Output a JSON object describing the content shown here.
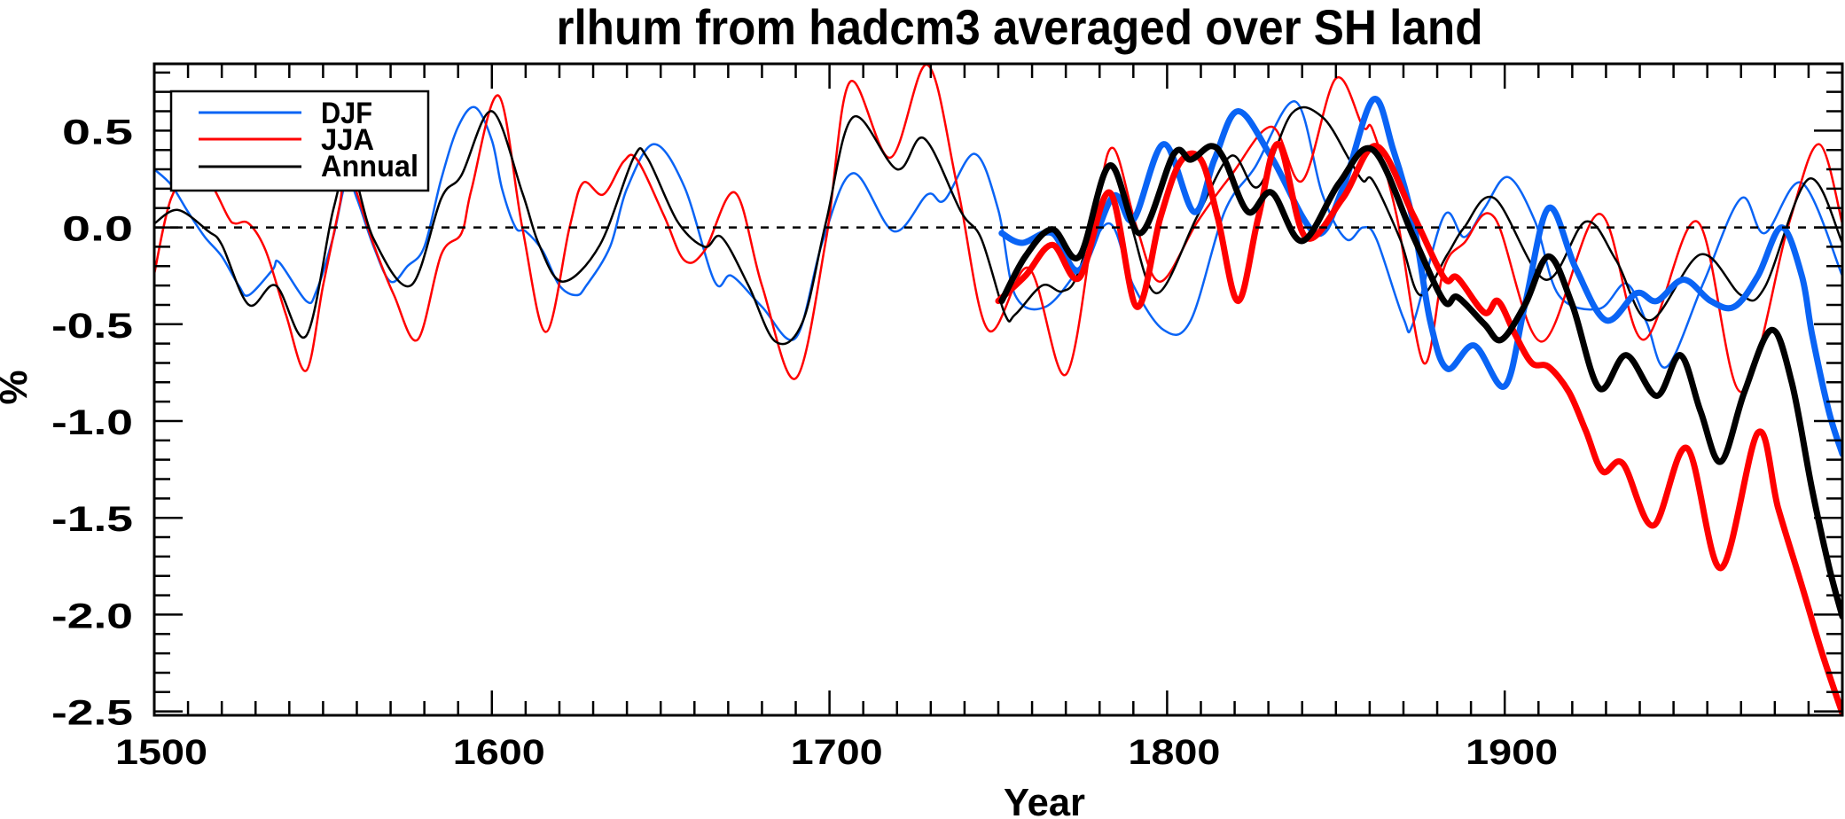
{
  "chart_data": {
    "type": "line",
    "title": "rlhum from hadcm3 averaged over SH land",
    "xlabel": "Year",
    "ylabel": "%",
    "xlim": [
      1500,
      2000
    ],
    "ylim": [
      -2.52,
      0.845
    ],
    "x_ticks": [
      1500,
      1600,
      1700,
      1800,
      1900
    ],
    "x_tick_labels": [
      "1500",
      "1600",
      "1700",
      "1800",
      "1900"
    ],
    "x_minor_step": 10,
    "y_ticks": [
      0.5,
      0.0,
      -0.5,
      -1.0,
      -1.5,
      -2.0,
      -2.5
    ],
    "y_tick_labels": [
      "0.5",
      "0.0",
      "-0.5",
      "-1.0",
      "-1.5",
      "-2.0",
      "-2.5"
    ],
    "y_minor_step": 0.1,
    "reference_line": {
      "y": 0.0,
      "style": "dashed"
    },
    "legend": {
      "position": "top-left",
      "entries": [
        {
          "label": "DJF",
          "color": "#0a64f5"
        },
        {
          "label": "JJA",
          "color": "#ff0000"
        },
        {
          "label": "Annual",
          "color": "#000000"
        }
      ]
    },
    "series": [
      {
        "name": "DJF",
        "variant": "thin",
        "color": "#0a64f5",
        "x": [
          1500,
          1505,
          1510,
          1515,
          1520,
          1525,
          1528,
          1535,
          1537,
          1545,
          1548,
          1553,
          1557,
          1560,
          1565,
          1570,
          1575,
          1580,
          1585,
          1590,
          1595,
          1600,
          1603,
          1607,
          1610,
          1615,
          1620,
          1625,
          1628,
          1635,
          1640,
          1648,
          1657,
          1666,
          1671,
          1680,
          1690,
          1698,
          1707,
          1719,
          1729,
          1734,
          1743,
          1750,
          1755,
          1764,
          1774,
          1783,
          1790,
          1799,
          1807,
          1817,
          1826,
          1838,
          1846,
          1853,
          1858,
          1862,
          1870,
          1873,
          1882,
          1888,
          1894,
          1901,
          1909,
          1916,
          1928,
          1936,
          1942,
          1948,
          1959,
          1970,
          1977,
          1988,
          2000
        ],
        "y": [
          0.3,
          0.22,
          0.08,
          -0.05,
          -0.15,
          -0.3,
          -0.35,
          -0.22,
          -0.18,
          -0.38,
          -0.33,
          -0.05,
          0.25,
          0.15,
          -0.1,
          -0.28,
          -0.2,
          -0.1,
          0.25,
          0.52,
          0.62,
          0.45,
          0.2,
          0.0,
          -0.02,
          -0.12,
          -0.3,
          -0.35,
          -0.3,
          -0.1,
          0.2,
          0.43,
          0.21,
          -0.28,
          -0.25,
          -0.41,
          -0.57,
          -0.07,
          0.28,
          -0.02,
          0.17,
          0.14,
          0.38,
          0.09,
          -0.35,
          -0.41,
          -0.21,
          0.02,
          -0.3,
          -0.53,
          -0.48,
          0.08,
          0.31,
          0.65,
          0.17,
          -0.06,
          0.0,
          -0.06,
          -0.47,
          -0.49,
          0.06,
          -0.05,
          0.1,
          0.26,
          0.03,
          -0.35,
          -0.42,
          -0.29,
          -0.49,
          -0.72,
          -0.28,
          0.15,
          -0.03,
          0.23,
          -0.25
        ]
      },
      {
        "name": "JJA",
        "variant": "thin",
        "color": "#ff0000",
        "x": [
          1500,
          1505,
          1512,
          1517,
          1522,
          1524,
          1528,
          1533,
          1539,
          1545,
          1550,
          1555,
          1557,
          1565,
          1571,
          1578,
          1585,
          1591,
          1594,
          1602,
          1609,
          1616,
          1623,
          1627,
          1633,
          1639,
          1643,
          1651,
          1657,
          1663,
          1672,
          1680,
          1690,
          1699,
          1706,
          1718,
          1729,
          1738,
          1747,
          1759,
          1770,
          1779,
          1784,
          1791,
          1798,
          1809,
          1819,
          1831,
          1840,
          1850,
          1858,
          1861,
          1868,
          1876,
          1882,
          1888,
          1897,
          1911,
          1928,
          1941,
          1957,
          1970,
          1984,
          1993,
          2000
        ],
        "y": [
          -0.24,
          0.15,
          0.31,
          0.22,
          0.05,
          0.02,
          0.02,
          -0.12,
          -0.45,
          -0.74,
          -0.3,
          0.12,
          0.31,
          -0.09,
          -0.35,
          -0.58,
          -0.14,
          -0.03,
          0.2,
          0.68,
          0.0,
          -0.54,
          0.0,
          0.23,
          0.17,
          0.34,
          0.35,
          0.06,
          -0.17,
          -0.12,
          0.18,
          -0.3,
          -0.78,
          -0.06,
          0.75,
          0.36,
          0.84,
          0.2,
          -0.53,
          -0.21,
          -0.76,
          0.09,
          0.41,
          0.0,
          -0.28,
          0.03,
          0.27,
          0.52,
          0.24,
          0.77,
          0.52,
          0.5,
          0.06,
          -0.7,
          -0.21,
          -0.08,
          0.05,
          -0.59,
          0.07,
          -0.58,
          0.03,
          -0.85,
          0.01,
          0.43,
          0.02
        ]
      },
      {
        "name": "Annual",
        "variant": "thin",
        "color": "#000000",
        "x": [
          1500,
          1507,
          1516,
          1520,
          1528,
          1536,
          1545,
          1553,
          1558,
          1565,
          1576,
          1585,
          1591,
          1600,
          1609,
          1614,
          1621,
          1632,
          1642,
          1646,
          1655,
          1663,
          1668,
          1676,
          1684,
          1692,
          1699,
          1707,
          1720,
          1728,
          1739,
          1745,
          1752,
          1755,
          1763,
          1769,
          1774,
          1783,
          1789,
          1797,
          1809,
          1819,
          1827,
          1837,
          1846,
          1854,
          1858,
          1861,
          1869,
          1875,
          1883,
          1888,
          1897,
          1912,
          1924,
          1933,
          1943,
          1958,
          1970,
          1977,
          1990,
          2000
        ],
        "y": [
          0.02,
          0.09,
          -0.02,
          -0.09,
          -0.4,
          -0.3,
          -0.56,
          0.09,
          0.32,
          -0.06,
          -0.3,
          0.15,
          0.27,
          0.6,
          0.18,
          -0.09,
          -0.28,
          -0.09,
          0.36,
          0.36,
          0.03,
          -0.1,
          -0.05,
          -0.3,
          -0.59,
          -0.49,
          0.03,
          0.57,
          0.3,
          0.46,
          0.08,
          -0.06,
          -0.45,
          -0.45,
          -0.3,
          -0.33,
          -0.22,
          0.32,
          0.03,
          -0.34,
          0.06,
          0.37,
          0.21,
          0.59,
          0.57,
          0.35,
          0.24,
          0.24,
          -0.06,
          -0.35,
          -0.14,
          0.0,
          0.15,
          -0.27,
          0.03,
          -0.17,
          -0.48,
          -0.14,
          -0.35,
          -0.31,
          0.25,
          -0.08
        ]
      },
      {
        "name": "DJF",
        "variant": "thick",
        "color": "#0a64f5",
        "x": [
          1751,
          1757,
          1766,
          1774,
          1784,
          1790,
          1799,
          1808,
          1814,
          1821,
          1831,
          1844,
          1852,
          1861,
          1867,
          1873,
          1878,
          1883,
          1891,
          1900,
          1906,
          1913,
          1921,
          1930,
          1939,
          1945,
          1953,
          1961,
          1968,
          1975,
          1982,
          1988,
          1991,
          1996,
          2000
        ],
        "y": [
          -0.03,
          -0.08,
          -0.03,
          -0.22,
          0.16,
          0.04,
          0.43,
          0.08,
          0.35,
          0.6,
          0.36,
          -0.03,
          0.2,
          0.66,
          0.4,
          0.02,
          -0.49,
          -0.73,
          -0.61,
          -0.82,
          -0.4,
          0.1,
          -0.21,
          -0.48,
          -0.34,
          -0.38,
          -0.27,
          -0.38,
          -0.41,
          -0.25,
          0.0,
          -0.25,
          -0.55,
          -0.95,
          -1.17
        ]
      },
      {
        "name": "JJA",
        "variant": "thick",
        "color": "#ff0000",
        "x": [
          1750,
          1758,
          1766,
          1774,
          1783,
          1791,
          1798,
          1804,
          1810,
          1815,
          1821,
          1827,
          1833,
          1841,
          1852,
          1862,
          1873,
          1882,
          1886,
          1894,
          1898,
          1903,
          1908,
          1913,
          1919,
          1924,
          1929,
          1935,
          1944,
          1954,
          1964,
          1975,
          1981,
          1988,
          1994,
          2000
        ],
        "y": [
          -0.38,
          -0.25,
          -0.09,
          -0.26,
          0.18,
          -0.41,
          0.05,
          0.34,
          0.35,
          0.05,
          -0.38,
          0.05,
          0.43,
          -0.05,
          0.15,
          0.42,
          0.06,
          -0.26,
          -0.26,
          -0.44,
          -0.38,
          -0.55,
          -0.7,
          -0.72,
          -0.85,
          -1.05,
          -1.26,
          -1.22,
          -1.54,
          -1.14,
          -1.76,
          -1.06,
          -1.45,
          -1.85,
          -2.2,
          -2.51
        ]
      },
      {
        "name": "Annual",
        "variant": "thick",
        "color": "#000000",
        "x": [
          1751,
          1758,
          1766,
          1774,
          1783,
          1792,
          1802,
          1807,
          1813,
          1817,
          1824,
          1831,
          1840,
          1851,
          1861,
          1873,
          1882,
          1886,
          1894,
          1899,
          1906,
          1913,
          1920,
          1928,
          1936,
          1945,
          1952,
          1958,
          1964,
          1971,
          1979,
          1985,
          1991,
          1996,
          2000
        ],
        "y": [
          -0.38,
          -0.15,
          -0.01,
          -0.15,
          0.32,
          -0.03,
          0.38,
          0.35,
          0.42,
          0.35,
          0.08,
          0.18,
          -0.07,
          0.23,
          0.4,
          -0.05,
          -0.38,
          -0.36,
          -0.5,
          -0.58,
          -0.4,
          -0.15,
          -0.4,
          -0.83,
          -0.66,
          -0.87,
          -0.66,
          -0.95,
          -1.21,
          -0.85,
          -0.53,
          -0.8,
          -1.35,
          -1.75,
          -2.01
        ]
      }
    ]
  }
}
